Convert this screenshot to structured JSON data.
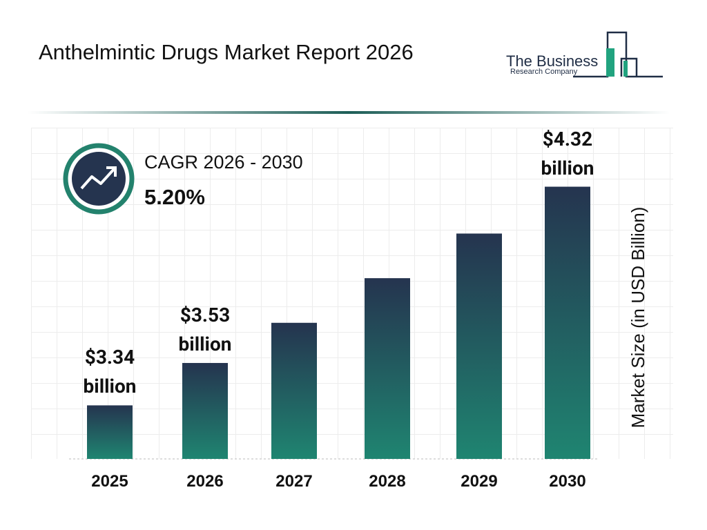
{
  "chart_data": {
    "type": "bar",
    "title": "Anthelmintic Drugs Market Report 2026",
    "cagr_label": "CAGR 2026 - 2030",
    "cagr_value": "5.20%",
    "y_label": "Market Size (in USD Billion)",
    "categories": [
      "2025",
      "2026",
      "2027",
      "2028",
      "2029",
      "2030"
    ],
    "values": [
      3.34,
      3.53,
      3.71,
      3.91,
      4.11,
      4.32
    ],
    "value_labels": [
      "$3.34 billion",
      "$3.53 billion",
      null,
      null,
      null,
      "$4.32 billion"
    ],
    "gradient": [
      "#25344f",
      "#1f8571"
    ],
    "ylim": [
      3.1,
      4.6
    ]
  },
  "logo": {
    "line1": "The Business",
    "line2": "Research Company"
  }
}
